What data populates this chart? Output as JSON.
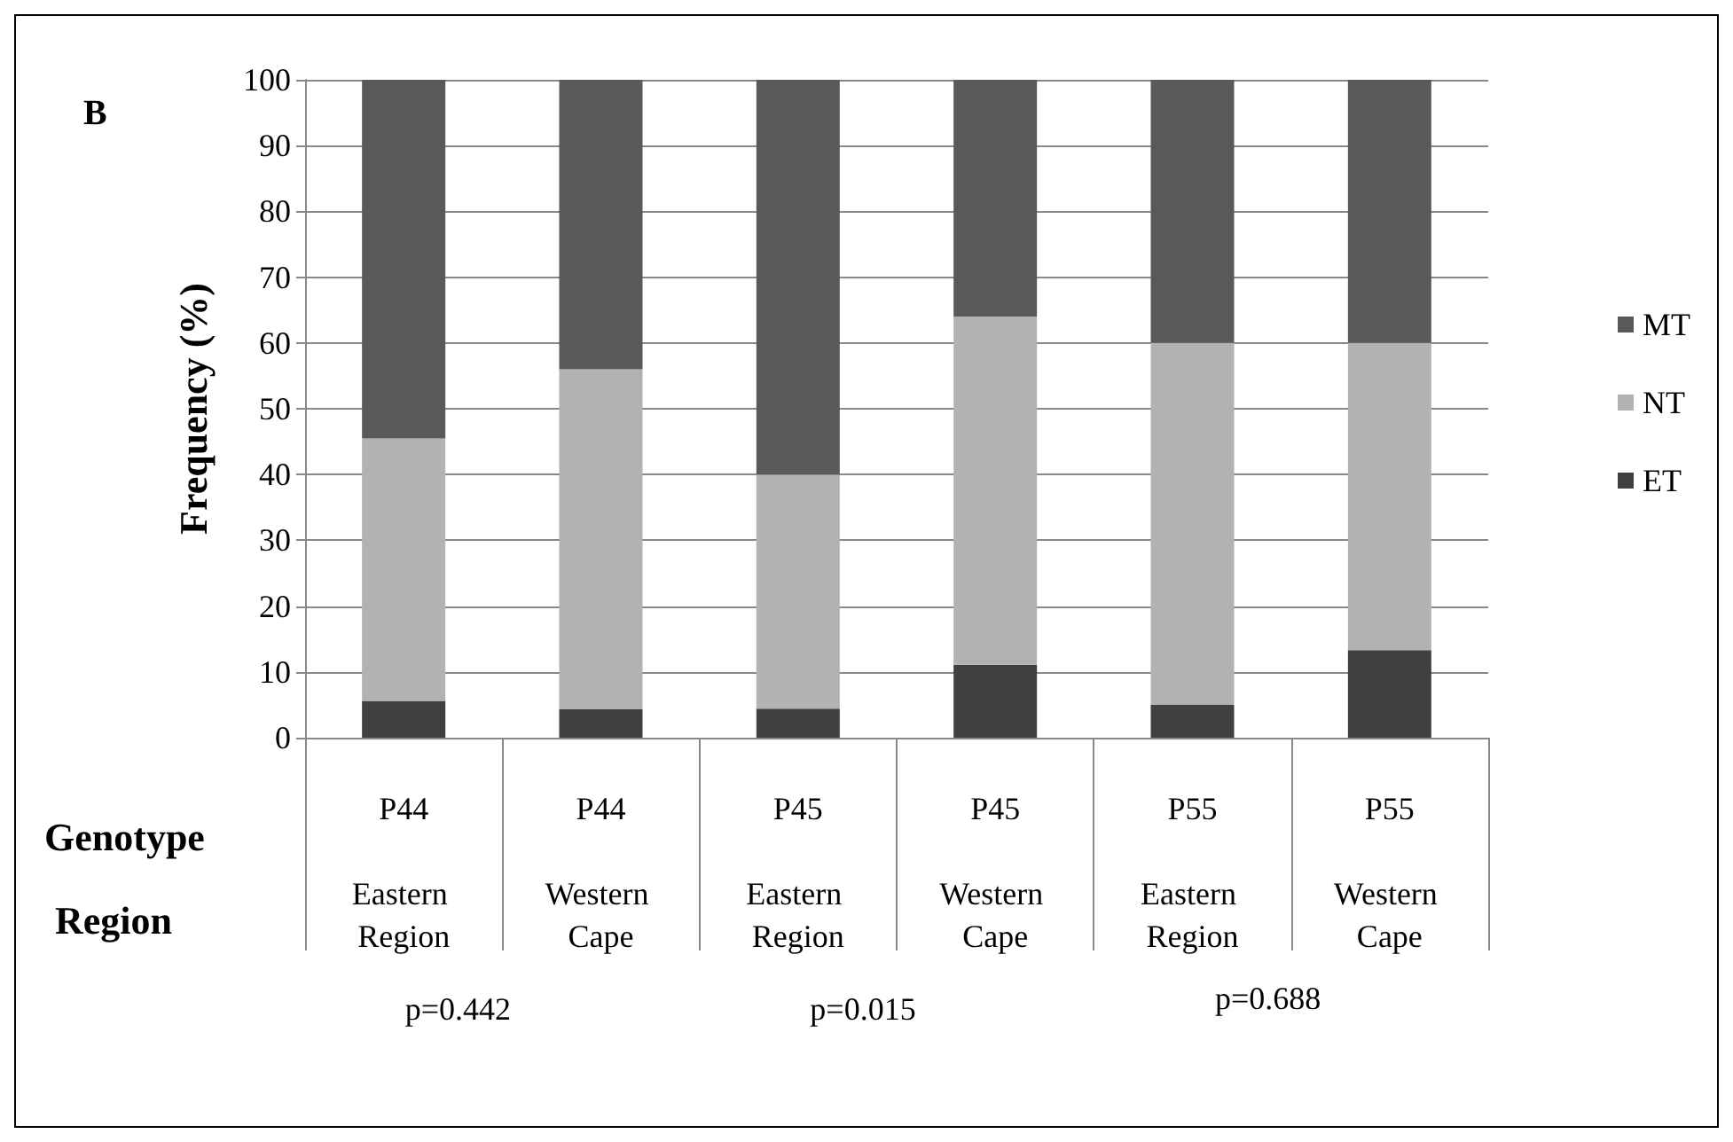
{
  "chart_data": {
    "type": "bar",
    "stacked": true,
    "ylabel": "Frequency (%)",
    "categories": [
      "P44\nEastern Region",
      "P44\nWestern Cape",
      "P45\nEastern Region",
      "P45\nWestern Cape",
      "P55\nEastern Region",
      "P55\nWestern Cape"
    ],
    "series": [
      {
        "name": "ET",
        "color": "#404040",
        "values": [
          5.6,
          4.3,
          4.4,
          11.1,
          5,
          13.3
        ]
      },
      {
        "name": "NT",
        "color": "#b2b2b2",
        "values": [
          39.9,
          51.7,
          35.6,
          52.9,
          55,
          46.7
        ]
      },
      {
        "name": "MT",
        "color": "#595959",
        "values": [
          54.5,
          44,
          60,
          36,
          40,
          40
        ]
      }
    ],
    "ylim": [
      0,
      100
    ],
    "yticks": [
      0,
      10,
      20,
      30,
      40,
      50,
      60,
      70,
      80,
      90,
      100
    ],
    "grid": "y",
    "legend": "right",
    "annotations": [
      "B",
      "Genotype",
      "Region",
      "p=0.442",
      "p=0.015",
      "p=0.688"
    ]
  }
}
